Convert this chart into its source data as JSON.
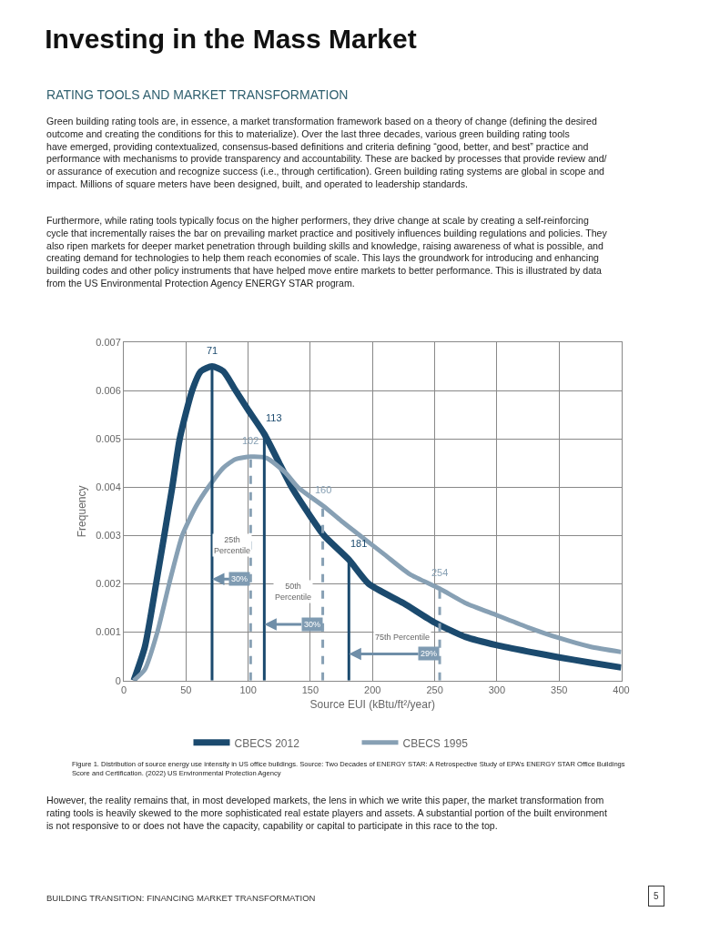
{
  "chart_data": {
    "type": "line",
    "title": "Investing in the Mass Market",
    "subtitle": "RATING TOOLS AND MARKET TRANSFORMATION",
    "xlabel": "Source EUI (kBtu/ft²/year)",
    "ylabel": "Frequency",
    "xlim": [
      0,
      400
    ],
    "xticks": [
      0,
      50,
      100,
      150,
      200,
      250,
      300,
      350,
      400
    ],
    "ylim": [
      0,
      0.007
    ],
    "yticks": [
      0,
      0.001,
      0.002,
      0.003,
      0.004,
      0.005,
      0.006,
      0.007
    ],
    "grid": true,
    "legend": "bottom",
    "marker": "none",
    "line_style": "solid",
    "series": [
      {
        "name": "CBECS 2012",
        "color": "#1b4a6e",
        "x": [
          8,
          17,
          26,
          39,
          45,
          55,
          62,
          71,
          80,
          90,
          100,
          113,
          125,
          135,
          150,
          161,
          181,
          197,
          225,
          250,
          275,
          300,
          325,
          350,
          375,
          400
        ],
        "values": [
          0,
          0.0007,
          0.002,
          0.004,
          0.005,
          0.006,
          0.0064,
          0.0065,
          0.0064,
          0.006,
          0.0056,
          0.0051,
          0.0045,
          0.004,
          0.0034,
          0.003,
          0.0025,
          0.002,
          0.0016,
          0.0012,
          0.0009,
          0.00073,
          0.0006,
          0.00048,
          0.00037,
          0.00027
        ]
      },
      {
        "name": "CBECS 1995",
        "color": "#87a0b4",
        "x": [
          8,
          17,
          27,
          36.5,
          47,
          58,
          68,
          80,
          90,
          102,
          115,
          130,
          140,
          161,
          175,
          190,
          210,
          230,
          254,
          275,
          300,
          325,
          350,
          375,
          400
        ],
        "values": [
          0,
          0.00023,
          0.001,
          0.002,
          0.003,
          0.0036,
          0.004,
          0.0044,
          0.00458,
          0.00463,
          0.0046,
          0.0043,
          0.004,
          0.0036,
          0.0033,
          0.003,
          0.0026,
          0.0022,
          0.0019,
          0.0016,
          0.00135,
          0.0011,
          0.00088,
          0.0007,
          0.00059
        ]
      }
    ],
    "ref_lines": [
      {
        "axis": "x",
        "value": 71,
        "label": "71",
        "color": "#1b4a6e",
        "line_style": "solid"
      },
      {
        "axis": "x",
        "value": 102,
        "label": "102",
        "color": "#87a0b4",
        "line_style": "dashed"
      },
      {
        "axis": "x",
        "value": 113,
        "label": "113",
        "color": "#1b4a6e",
        "line_style": "solid"
      },
      {
        "axis": "x",
        "value": 160,
        "label": "160",
        "color": "#87a0b4",
        "line_style": "dashed"
      },
      {
        "axis": "x",
        "value": 181,
        "label": "181",
        "color": "#1b4a6e",
        "line_style": "solid"
      },
      {
        "axis": "x",
        "value": 254,
        "label": "254",
        "color": "#87a0b4",
        "line_style": "dashed"
      }
    ],
    "annotations": [
      "Green building rating tools are, in essence, a market transformation framework based on a theory of change (defining the desired\noutcome and creating the conditions for this to materialize). Over the last three decades, various green building rating tools\nhave emerged, providing contextualized, consensus-based definitions and criteria defining “good, better, and best” practice and\nperformance with mechanisms to provide transparency and accountability. These are backed by processes that provide review and/\nor assurance of execution and recognize success (i.e., through certification). Green building rating systems are global in scope and\nimpact. Millions of square meters have been designed, built, and operated to leadership standards.",
      "Furthermore, while rating tools typically focus on the higher performers, they drive change at scale by creating a self-reinforcing\ncycle that incrementally raises the bar on prevailing market practice and positively influences building regulations and policies. They\nalso ripen markets for deeper market penetration through building skills and knowledge, raising awareness of what is possible, and\ncreating demand for technologies to help them reach economies of scale. This lays the groundwork for introducing and enhancing\nbuilding codes and other policy instruments that have helped move entire markets to better performance. This is illustrated by data\nfrom the US Environmental Protection Agency ENERGY STAR program.",
      "Figure 1. Distribution of source energy use intensity in US office buildings. Source: Two Decades of ENERGY STAR: A Retrospective Study of EPA’s ENERGY STAR Office Buildings\nScore and Certification. (2022) US Environmental Protection Agency",
      "However, the reality remains that, in most developed markets, the lens in which we write this paper, the market transformation from\nrating tools is heavily skewed to the more sophisticated real estate players and assets. A substantial portion of the built environment\nis not responsive to or does not have the capacity, capability or capital to participate in this race to the top.",
      "BUILDING TRANSITION: FINANCING MARKET TRANSFORMATION",
      "5",
      "25th\nPercentile",
      {
        "text": "30%",
        "x": 71,
        "y": 0.0021
      },
      "50th\nPercentile",
      {
        "text": "30%",
        "x": 113,
        "y": 0.00116
      },
      "75th Percentile",
      {
        "text": "29%",
        "x": 181,
        "y": 0.00055
      }
    ]
  }
}
